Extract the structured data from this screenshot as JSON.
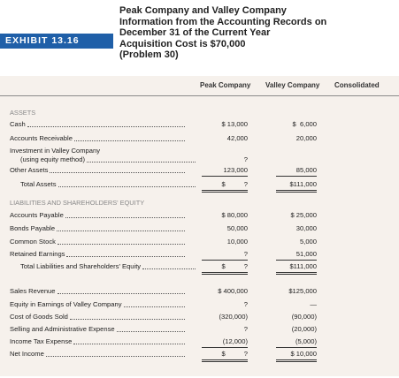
{
  "header": {
    "exhibit": "EXHIBIT 13.16",
    "title": [
      "Peak Company and Valley Company",
      "Information from the Accounting Records on",
      "December 31 of the Current Year",
      "Acquisition Cost is $70,000",
      "(Problem 30)"
    ]
  },
  "table": {
    "columns": [
      "Peak Company",
      "Valley Company",
      "Consolidated"
    ],
    "rows": [
      [
        "ASSETS"
      ],
      [
        "Cash",
        "$ 13,000",
        "$  6,000"
      ],
      [
        "Accounts Receivable",
        "42,000",
        "20,000"
      ],
      [
        "Investment in Valley Company"
      ],
      [
        "(using equity method)",
        "?",
        ""
      ],
      [
        "Other Assets",
        "123,000",
        "85,000"
      ],
      [
        "Total Assets",
        "$          ?",
        "$111,000"
      ],
      [
        "LIABILITIES AND SHAREHOLDERS' EQUITY"
      ],
      [
        "Accounts Payable",
        "$ 80,000",
        "$ 25,000"
      ],
      [
        "Bonds Payable",
        "50,000",
        "30,000"
      ],
      [
        "Common Stock",
        "10,000",
        "5,000"
      ],
      [
        "Retained Earnings",
        "?",
        "51,000"
      ],
      [
        "Total Liabilities and Shareholders' Equity",
        "$          ?",
        "$111,000"
      ],
      [
        "Sales Revenue",
        "$ 400,000",
        "$125,000"
      ],
      [
        "Equity in Earnings of Valley Company",
        "?",
        "—"
      ],
      [
        "Cost of Goods Sold",
        "(320,000)",
        "(90,000)"
      ],
      [
        "Selling and Administrative Expense",
        "?",
        "(20,000)"
      ],
      [
        "Income Tax Expense",
        "(12,000)",
        "(5,000)"
      ],
      [
        "Net Income",
        "$          ?",
        "$ 10,000"
      ]
    ]
  }
}
